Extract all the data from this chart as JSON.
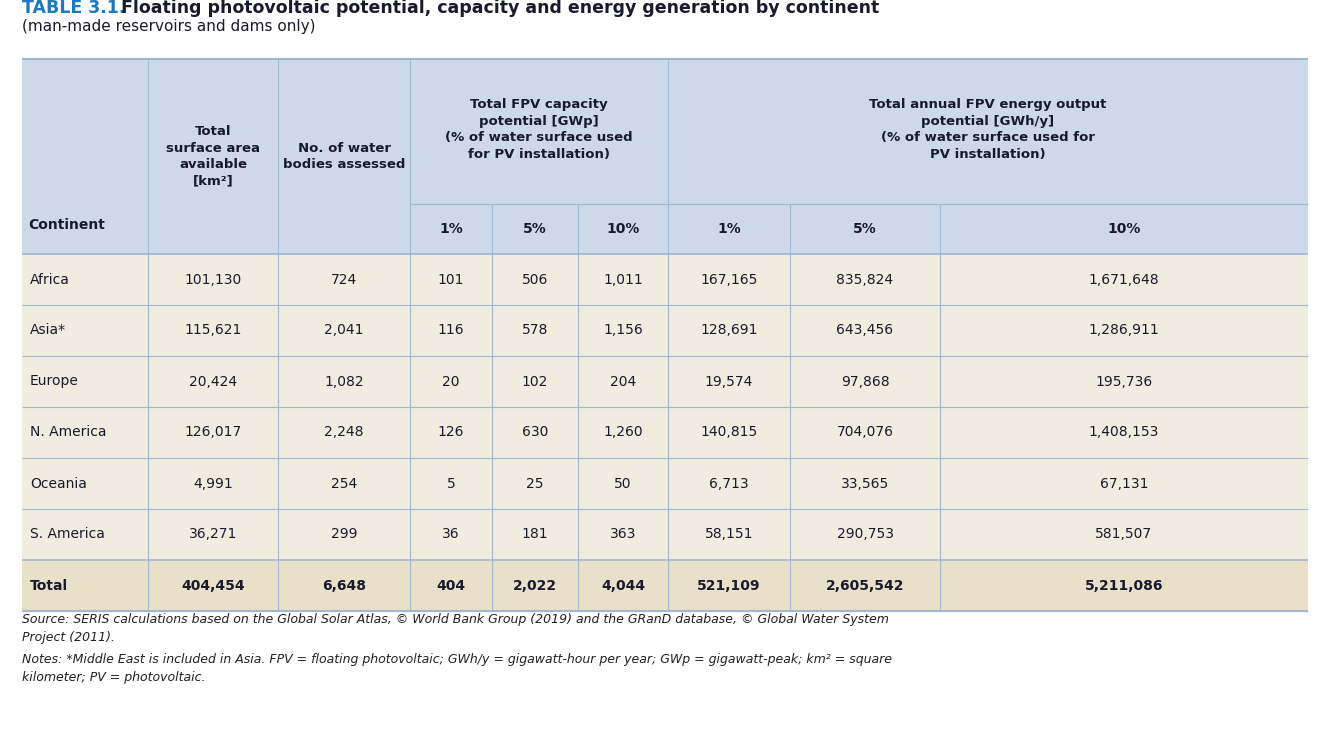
{
  "title_bold": "TABLE 3.1.",
  "title_rest": " Floating photovoltaic potential, capacity and energy generation by continent",
  "subtitle": "(man-made reservoirs and dams only)",
  "bg_color": "#cdd9e8",
  "data_row_bg": "#f0ece0",
  "total_row_bg": "#e8e0c8",
  "white_bg": "#ffffff",
  "border_color": "#a0b8d0",
  "title_color": "#1a7abf",
  "text_color": "#1a1a2e",
  "note_color": "#222222",
  "rows": [
    [
      "Africa",
      "101,130",
      "724",
      "101",
      "506",
      "1,011",
      "167,165",
      "835,824",
      "1,671,648"
    ],
    [
      "Asia*",
      "115,621",
      "2,041",
      "116",
      "578",
      "1,156",
      "128,691",
      "643,456",
      "1,286,911"
    ],
    [
      "Europe",
      "20,424",
      "1,082",
      "20",
      "102",
      "204",
      "19,574",
      "97,868",
      "195,736"
    ],
    [
      "N. America",
      "126,017",
      "2,248",
      "126",
      "630",
      "1,260",
      "140,815",
      "704,076",
      "1,408,153"
    ],
    [
      "Oceania",
      "4,991",
      "254",
      "5",
      "25",
      "50",
      "6,713",
      "33,565",
      "67,131"
    ],
    [
      "S. America",
      "36,271",
      "299",
      "36",
      "181",
      "363",
      "58,151",
      "290,753",
      "581,507"
    ]
  ],
  "total_row": [
    "Total",
    "404,454",
    "6,648",
    "404",
    "2,022",
    "4,044",
    "521,109",
    "2,605,542",
    "5,211,086"
  ],
  "source_line1": "Source: SERIS calculations based on the Global Solar Atlas, © World Bank Group (2019) and the GRanD database, © Global Water System",
  "source_line2": "Project (2011).",
  "notes_line1": "Notes: *Middle East is included in Asia. FPV = floating photovoltaic; GWh/y = gigawatt-hour per year; GWp = gigawatt-peak; km² = square",
  "notes_line2": "kilometer; PV = photovoltaic."
}
